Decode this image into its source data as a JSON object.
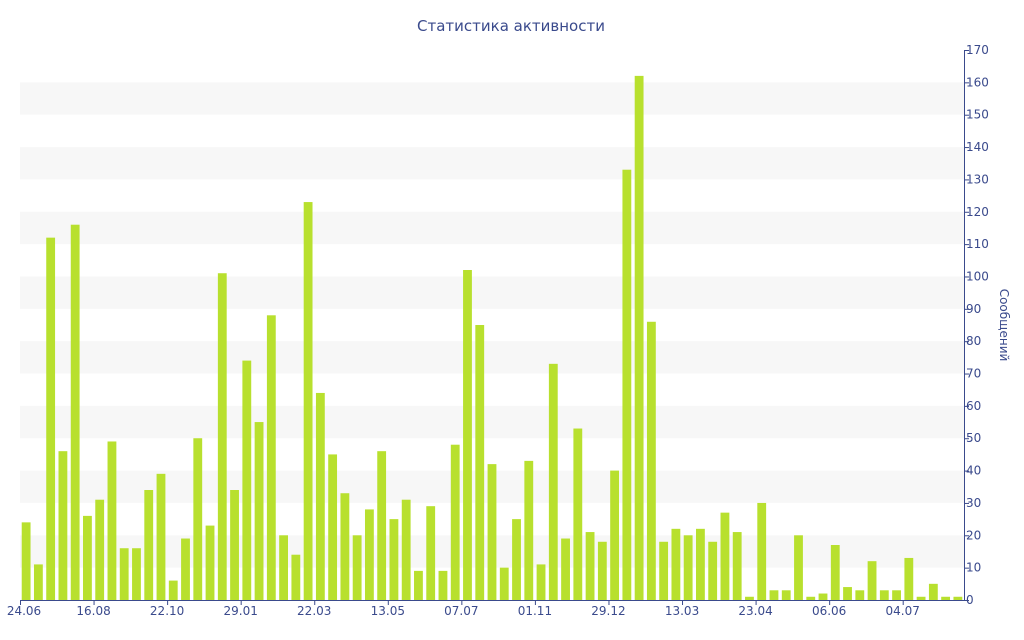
{
  "chart_data": {
    "type": "bar",
    "title": "Статистика активности",
    "ylabel": "Сообщений",
    "xlabel": "",
    "ylim": [
      0,
      170
    ],
    "y_ticks": [
      0,
      10,
      20,
      30,
      40,
      50,
      60,
      70,
      80,
      90,
      100,
      110,
      120,
      130,
      140,
      150,
      160,
      170
    ],
    "x_tick_labels": [
      "24.06",
      "16.08",
      "22.10",
      "29.01",
      "22.03",
      "13.05",
      "07.07",
      "01.11",
      "29.12",
      "13.03",
      "23.04",
      "06.06",
      "04.07"
    ],
    "x_tick_bar_index": [
      0,
      6,
      12,
      18,
      24,
      30,
      36,
      42,
      48,
      54,
      60,
      66,
      72
    ],
    "y_axis_position": "right",
    "grid": "alternating horizontal bands",
    "bar_color": "#b8e02e",
    "band_color": "#f7f7f7",
    "text_color": "#3a4a8c",
    "values": [
      24,
      11,
      112,
      46,
      116,
      26,
      31,
      49,
      16,
      16,
      34,
      39,
      6,
      19,
      50,
      23,
      101,
      34,
      74,
      55,
      88,
      20,
      14,
      123,
      64,
      45,
      33,
      20,
      28,
      46,
      25,
      31,
      9,
      29,
      9,
      48,
      102,
      85,
      42,
      10,
      25,
      43,
      11,
      73,
      19,
      53,
      21,
      18,
      40,
      133,
      162,
      86,
      18,
      22,
      20,
      22,
      18,
      27,
      21,
      1,
      30,
      3,
      3,
      20,
      1,
      2,
      17,
      4,
      3,
      12,
      3,
      3,
      13,
      1,
      5,
      1,
      1
    ]
  }
}
